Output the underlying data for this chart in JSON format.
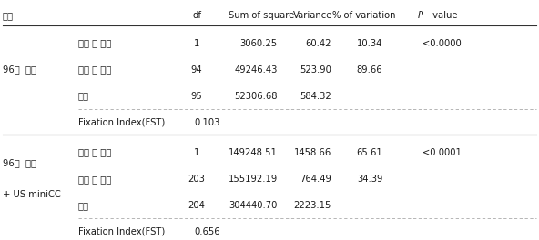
{
  "title_row": [
    "분류",
    "",
    "df",
    "Sum of square",
    "Variance",
    "% of variation",
    "P value"
  ],
  "group1_label": "96개  자원",
  "group1_rows": [
    [
      "집단 간 변이",
      "1",
      "3060.25",
      "60.42",
      "10.34",
      "<0.0000"
    ],
    [
      "집단 내 변이",
      "94",
      "49246.43",
      "523.90",
      "89.66",
      ""
    ],
    [
      "전체",
      "95",
      "52306.68",
      "584.32",
      "",
      ""
    ]
  ],
  "group1_fst": [
    "Fixation Index(FST)",
    "0.103"
  ],
  "group2_label": "96개  자원\n+ US miniCC",
  "group2_rows": [
    [
      "집단 간 변이",
      "1",
      "149248.51",
      "1458.66",
      "65.61",
      "<0.0001"
    ],
    [
      "집단 내 변이",
      "203",
      "155192.19",
      "764.49",
      "34.39",
      ""
    ],
    [
      "전체",
      "204",
      "304440.70",
      "2223.15",
      "",
      ""
    ]
  ],
  "group2_fst": [
    "Fixation Index(FST)",
    "0.656"
  ],
  "bg_color": "#ffffff",
  "font_size": 7.2
}
